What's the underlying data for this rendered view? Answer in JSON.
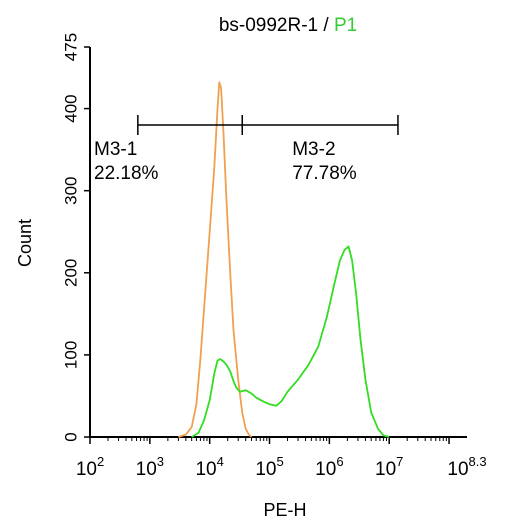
{
  "chart_data": {
    "type": "line",
    "title": {
      "sample": "bs-0992R-1",
      "separator": " / ",
      "gate": "P1"
    },
    "xlabel": "PE-H",
    "ylabel": "Count",
    "x_scale": "log10",
    "xlim": [
      100,
      199526231
    ],
    "ylim": [
      0,
      475
    ],
    "x_ticks": [
      {
        "value": 100,
        "base": "10",
        "exp": "2"
      },
      {
        "value": 1000,
        "base": "10",
        "exp": "3"
      },
      {
        "value": 10000,
        "base": "10",
        "exp": "4"
      },
      {
        "value": 100000,
        "base": "10",
        "exp": "5"
      },
      {
        "value": 1000000,
        "base": "10",
        "exp": "6"
      },
      {
        "value": 10000000,
        "base": "10",
        "exp": "7"
      },
      {
        "value": 199526231,
        "base": "10",
        "exp": "8.3"
      }
    ],
    "y_ticks": [
      0,
      100,
      200,
      300,
      400,
      475
    ],
    "colors": {
      "gate": "#33cc33",
      "control": "#f0a050",
      "sample": "#33dd22",
      "axis": "#000000"
    },
    "series": [
      {
        "key": "control",
        "points": [
          [
            3000,
            0
          ],
          [
            4000,
            3
          ],
          [
            5000,
            12
          ],
          [
            6000,
            40
          ],
          [
            7000,
            95
          ],
          [
            8500,
            180
          ],
          [
            10000,
            250
          ],
          [
            12000,
            330
          ],
          [
            13500,
            400
          ],
          [
            14500,
            432
          ],
          [
            15500,
            425
          ],
          [
            17000,
            370
          ],
          [
            19000,
            290
          ],
          [
            22000,
            200
          ],
          [
            25000,
            130
          ],
          [
            30000,
            70
          ],
          [
            35000,
            30
          ],
          [
            40000,
            10
          ],
          [
            45000,
            3
          ],
          [
            50000,
            0
          ]
        ]
      },
      {
        "key": "sample",
        "points": [
          [
            5000,
            0
          ],
          [
            6500,
            5
          ],
          [
            8000,
            20
          ],
          [
            10000,
            45
          ],
          [
            12000,
            78
          ],
          [
            13500,
            93
          ],
          [
            15000,
            95
          ],
          [
            17000,
            92
          ],
          [
            19000,
            88
          ],
          [
            22000,
            80
          ],
          [
            25000,
            68
          ],
          [
            28000,
            60
          ],
          [
            32000,
            55
          ],
          [
            40000,
            57
          ],
          [
            50000,
            53
          ],
          [
            60000,
            48
          ],
          [
            80000,
            43
          ],
          [
            100000,
            40
          ],
          [
            130000,
            38
          ],
          [
            160000,
            44
          ],
          [
            200000,
            55
          ],
          [
            300000,
            70
          ],
          [
            450000,
            88
          ],
          [
            650000,
            110
          ],
          [
            900000,
            145
          ],
          [
            1200000,
            185
          ],
          [
            1500000,
            215
          ],
          [
            1800000,
            228
          ],
          [
            2100000,
            232
          ],
          [
            2400000,
            215
          ],
          [
            2800000,
            175
          ],
          [
            3300000,
            120
          ],
          [
            4000000,
            70
          ],
          [
            5000000,
            30
          ],
          [
            6500000,
            10
          ],
          [
            8000000,
            2
          ],
          [
            10000000,
            0
          ]
        ]
      }
    ],
    "gates": [
      {
        "name": "M3-1",
        "percent": "22.18%",
        "x_start": 630,
        "x_end": 35000,
        "y": 380
      },
      {
        "name": "M3-2",
        "percent": "77.78%",
        "x_start": 35000,
        "x_end": 14000000,
        "y": 380
      }
    ]
  }
}
